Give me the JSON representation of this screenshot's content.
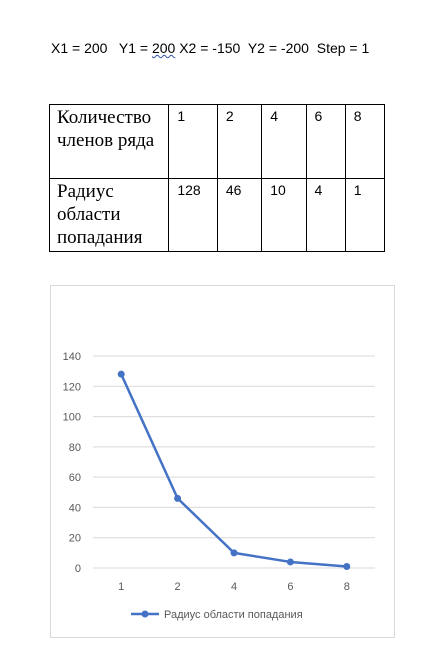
{
  "params": {
    "x1": "X1 = 200",
    "y1_prefix": "Y1 = ",
    "y1_value": "200",
    "x2": "X2 = -150",
    "y2": "Y2 = -200",
    "step": "Step = 1"
  },
  "table": {
    "rows": [
      {
        "label": "Количество членов ряда",
        "cells": [
          "1",
          "2",
          "4",
          "6",
          "8"
        ]
      },
      {
        "label": "Радиус области попадания",
        "cells": [
          "128",
          "46",
          "10",
          "4",
          "1"
        ]
      }
    ]
  },
  "chart_data": {
    "type": "line",
    "categories": [
      "1",
      "2",
      "4",
      "6",
      "8"
    ],
    "series": [
      {
        "name": "Радиус области попадания",
        "values": [
          128,
          46,
          10,
          4,
          1
        ],
        "color": "#4472c4"
      }
    ],
    "title": "",
    "xlabel": "",
    "ylabel": "",
    "ylim": [
      0,
      140
    ],
    "yticks": [
      "0",
      "20",
      "40",
      "60",
      "80",
      "100",
      "120",
      "140"
    ],
    "grid": true,
    "legend": "bottom"
  }
}
